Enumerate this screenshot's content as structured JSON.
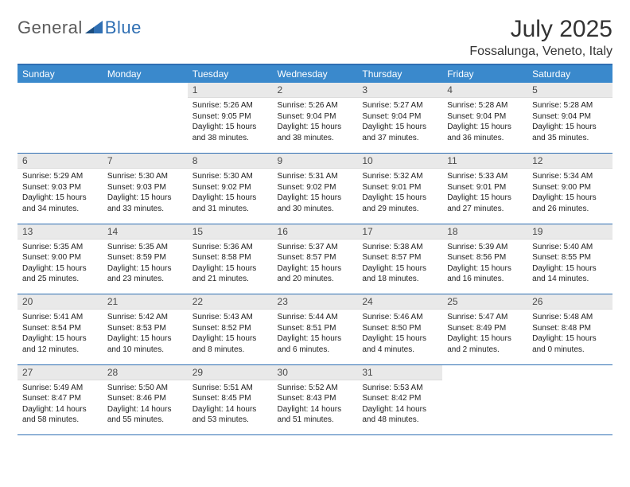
{
  "logo": {
    "part1": "General",
    "part2": "Blue"
  },
  "title": "July 2025",
  "location": "Fossalunga, Veneto, Italy",
  "colors": {
    "header_bg": "#3a89cc",
    "header_text": "#ffffff",
    "rule": "#2f6fb3",
    "daynum_bg": "#e9e9e9",
    "text": "#222222",
    "logo_gray": "#5b5b5b",
    "logo_blue": "#2f6fb3",
    "background": "#ffffff"
  },
  "day_headers": [
    "Sunday",
    "Monday",
    "Tuesday",
    "Wednesday",
    "Thursday",
    "Friday",
    "Saturday"
  ],
  "weeks": [
    [
      null,
      null,
      {
        "n": "1",
        "sr": "5:26 AM",
        "ss": "9:05 PM",
        "dl": "15 hours and 38 minutes."
      },
      {
        "n": "2",
        "sr": "5:26 AM",
        "ss": "9:04 PM",
        "dl": "15 hours and 38 minutes."
      },
      {
        "n": "3",
        "sr": "5:27 AM",
        "ss": "9:04 PM",
        "dl": "15 hours and 37 minutes."
      },
      {
        "n": "4",
        "sr": "5:28 AM",
        "ss": "9:04 PM",
        "dl": "15 hours and 36 minutes."
      },
      {
        "n": "5",
        "sr": "5:28 AM",
        "ss": "9:04 PM",
        "dl": "15 hours and 35 minutes."
      }
    ],
    [
      {
        "n": "6",
        "sr": "5:29 AM",
        "ss": "9:03 PM",
        "dl": "15 hours and 34 minutes."
      },
      {
        "n": "7",
        "sr": "5:30 AM",
        "ss": "9:03 PM",
        "dl": "15 hours and 33 minutes."
      },
      {
        "n": "8",
        "sr": "5:30 AM",
        "ss": "9:02 PM",
        "dl": "15 hours and 31 minutes."
      },
      {
        "n": "9",
        "sr": "5:31 AM",
        "ss": "9:02 PM",
        "dl": "15 hours and 30 minutes."
      },
      {
        "n": "10",
        "sr": "5:32 AM",
        "ss": "9:01 PM",
        "dl": "15 hours and 29 minutes."
      },
      {
        "n": "11",
        "sr": "5:33 AM",
        "ss": "9:01 PM",
        "dl": "15 hours and 27 minutes."
      },
      {
        "n": "12",
        "sr": "5:34 AM",
        "ss": "9:00 PM",
        "dl": "15 hours and 26 minutes."
      }
    ],
    [
      {
        "n": "13",
        "sr": "5:35 AM",
        "ss": "9:00 PM",
        "dl": "15 hours and 25 minutes."
      },
      {
        "n": "14",
        "sr": "5:35 AM",
        "ss": "8:59 PM",
        "dl": "15 hours and 23 minutes."
      },
      {
        "n": "15",
        "sr": "5:36 AM",
        "ss": "8:58 PM",
        "dl": "15 hours and 21 minutes."
      },
      {
        "n": "16",
        "sr": "5:37 AM",
        "ss": "8:57 PM",
        "dl": "15 hours and 20 minutes."
      },
      {
        "n": "17",
        "sr": "5:38 AM",
        "ss": "8:57 PM",
        "dl": "15 hours and 18 minutes."
      },
      {
        "n": "18",
        "sr": "5:39 AM",
        "ss": "8:56 PM",
        "dl": "15 hours and 16 minutes."
      },
      {
        "n": "19",
        "sr": "5:40 AM",
        "ss": "8:55 PM",
        "dl": "15 hours and 14 minutes."
      }
    ],
    [
      {
        "n": "20",
        "sr": "5:41 AM",
        "ss": "8:54 PM",
        "dl": "15 hours and 12 minutes."
      },
      {
        "n": "21",
        "sr": "5:42 AM",
        "ss": "8:53 PM",
        "dl": "15 hours and 10 minutes."
      },
      {
        "n": "22",
        "sr": "5:43 AM",
        "ss": "8:52 PM",
        "dl": "15 hours and 8 minutes."
      },
      {
        "n": "23",
        "sr": "5:44 AM",
        "ss": "8:51 PM",
        "dl": "15 hours and 6 minutes."
      },
      {
        "n": "24",
        "sr": "5:46 AM",
        "ss": "8:50 PM",
        "dl": "15 hours and 4 minutes."
      },
      {
        "n": "25",
        "sr": "5:47 AM",
        "ss": "8:49 PM",
        "dl": "15 hours and 2 minutes."
      },
      {
        "n": "26",
        "sr": "5:48 AM",
        "ss": "8:48 PM",
        "dl": "15 hours and 0 minutes."
      }
    ],
    [
      {
        "n": "27",
        "sr": "5:49 AM",
        "ss": "8:47 PM",
        "dl": "14 hours and 58 minutes."
      },
      {
        "n": "28",
        "sr": "5:50 AM",
        "ss": "8:46 PM",
        "dl": "14 hours and 55 minutes."
      },
      {
        "n": "29",
        "sr": "5:51 AM",
        "ss": "8:45 PM",
        "dl": "14 hours and 53 minutes."
      },
      {
        "n": "30",
        "sr": "5:52 AM",
        "ss": "8:43 PM",
        "dl": "14 hours and 51 minutes."
      },
      {
        "n": "31",
        "sr": "5:53 AM",
        "ss": "8:42 PM",
        "dl": "14 hours and 48 minutes."
      },
      null,
      null
    ]
  ],
  "labels": {
    "sunrise": "Sunrise:",
    "sunset": "Sunset:",
    "daylight": "Daylight:"
  }
}
